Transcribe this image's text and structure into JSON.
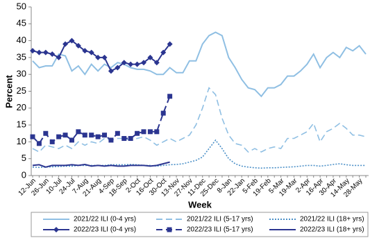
{
  "chart_data": {
    "type": "line",
    "x_label": "Week",
    "y_label": "Percent",
    "categories": [
      "12-Jun",
      null,
      "26-Jun",
      null,
      "10-Jul",
      null,
      "24-Jul",
      null,
      "7-Aug",
      null,
      "21-Aug",
      null,
      "4-Sep",
      null,
      "18-Sep",
      null,
      "2-Oct",
      null,
      "16-Oct",
      null,
      "30-Oct",
      null,
      "13-Nov",
      null,
      "27-Nov",
      null,
      "11-Dec",
      null,
      "25-Dec",
      null,
      "8-Jan",
      null,
      "22-Jan",
      null,
      "5-Feb",
      null,
      "19-Feb",
      null,
      "5-Mar",
      null,
      "19-Mar",
      null,
      "2-Apr",
      null,
      "16-Apr",
      null,
      "30-Apr",
      null,
      "14-May",
      null,
      "28-May",
      null
    ],
    "ylim": [
      0,
      50
    ],
    "yticks": [
      0,
      5,
      10,
      15,
      20,
      25,
      30,
      35,
      40,
      45,
      50
    ],
    "series": [
      {
        "name": "2021/22 ILI (0-4 yrs)",
        "color": "#8fbfe3",
        "style": "solid",
        "marker": "none",
        "values": [
          34,
          32,
          32.5,
          32.5,
          36,
          35.5,
          31,
          32.5,
          30,
          33,
          31,
          33,
          32,
          33.5,
          33,
          32,
          31.5,
          31.5,
          31,
          30,
          30,
          32,
          30.5,
          30.5,
          34,
          34,
          39,
          41.5,
          42.5,
          41.5,
          35,
          32,
          28.5,
          26,
          25.5,
          23.5,
          26,
          26,
          27,
          29.5,
          29.5,
          31,
          33,
          36,
          32,
          35,
          36.5,
          35,
          38,
          37,
          38.5,
          36
        ]
      },
      {
        "name": "2021/22 ILI (5-17 yrs)",
        "color": "#8fbfe3",
        "style": "dashed",
        "marker": "none",
        "values": [
          8,
          7,
          9,
          8.5,
          8,
          9,
          8,
          10,
          9,
          10,
          9.5,
          11,
          10.5,
          11,
          11,
          10.5,
          11,
          11.5,
          10.5,
          9,
          10,
          11,
          10,
          11,
          12,
          15,
          20,
          26,
          24,
          17,
          12,
          9.5,
          9,
          7,
          8,
          7,
          8,
          8.5,
          8,
          11,
          11,
          12,
          13,
          15.5,
          10,
          13,
          14,
          15.5,
          14,
          12,
          12,
          11.5
        ]
      },
      {
        "name": "2021/22 ILI (18+ yrs)",
        "color": "#4a8fc7",
        "style": "dotted",
        "marker": "none",
        "values": [
          2.5,
          2.4,
          2.5,
          2.6,
          2.7,
          2.8,
          2.8,
          3,
          3,
          3,
          3,
          3,
          3.2,
          3.2,
          3.2,
          3.3,
          3.2,
          3,
          3,
          2.8,
          3,
          3.2,
          3.3,
          3.5,
          4,
          4.5,
          5.5,
          8,
          10.5,
          8,
          5,
          3.5,
          2.8,
          2.5,
          2.3,
          2.2,
          2.3,
          2.3,
          2.4,
          2.5,
          2.6,
          2.8,
          3,
          3,
          2.8,
          3,
          3.3,
          3.5,
          3.2,
          3,
          3,
          3
        ]
      },
      {
        "name": "2022/23 ILI (0-4 yrs)",
        "color": "#2b3590",
        "style": "solid",
        "marker": "diamond",
        "values": [
          37,
          36.5,
          36.5,
          36,
          35,
          39,
          40,
          38.5,
          37,
          36.5,
          35,
          35,
          31,
          32,
          33.5,
          33,
          33,
          33.5,
          35,
          33.5,
          36.5,
          39,
          null,
          null,
          null,
          null,
          null,
          null,
          null,
          null,
          null,
          null,
          null,
          null,
          null,
          null,
          null,
          null,
          null,
          null,
          null,
          null,
          null,
          null,
          null,
          null,
          null,
          null,
          null,
          null,
          null,
          null
        ]
      },
      {
        "name": "2022/23 ILI (5-17 yrs)",
        "color": "#2b3590",
        "style": "dashed",
        "marker": "square",
        "values": [
          11.5,
          9.5,
          12.5,
          10,
          11.5,
          12,
          10.5,
          13,
          12,
          12,
          11.5,
          12,
          10.5,
          12.5,
          11,
          11,
          12.5,
          13,
          13,
          13,
          18.5,
          23.5,
          null,
          null,
          null,
          null,
          null,
          null,
          null,
          null,
          null,
          null,
          null,
          null,
          null,
          null,
          null,
          null,
          null,
          null,
          null,
          null,
          null,
          null,
          null,
          null,
          null,
          null,
          null,
          null,
          null,
          null
        ]
      },
      {
        "name": "2022/23 ILI (18+ yrs)",
        "color": "#2b3590",
        "style": "solid",
        "marker": "none",
        "values": [
          3,
          3.2,
          2.5,
          3,
          3,
          3,
          3.2,
          3,
          3.3,
          2.8,
          3,
          2.8,
          3,
          2.8,
          2.8,
          3,
          3,
          3,
          2.8,
          3,
          3.5,
          4,
          null,
          null,
          null,
          null,
          null,
          null,
          null,
          null,
          null,
          null,
          null,
          null,
          null,
          null,
          null,
          null,
          null,
          null,
          null,
          null,
          null,
          null,
          null,
          null,
          null,
          null,
          null,
          null,
          null,
          null
        ]
      }
    ]
  }
}
